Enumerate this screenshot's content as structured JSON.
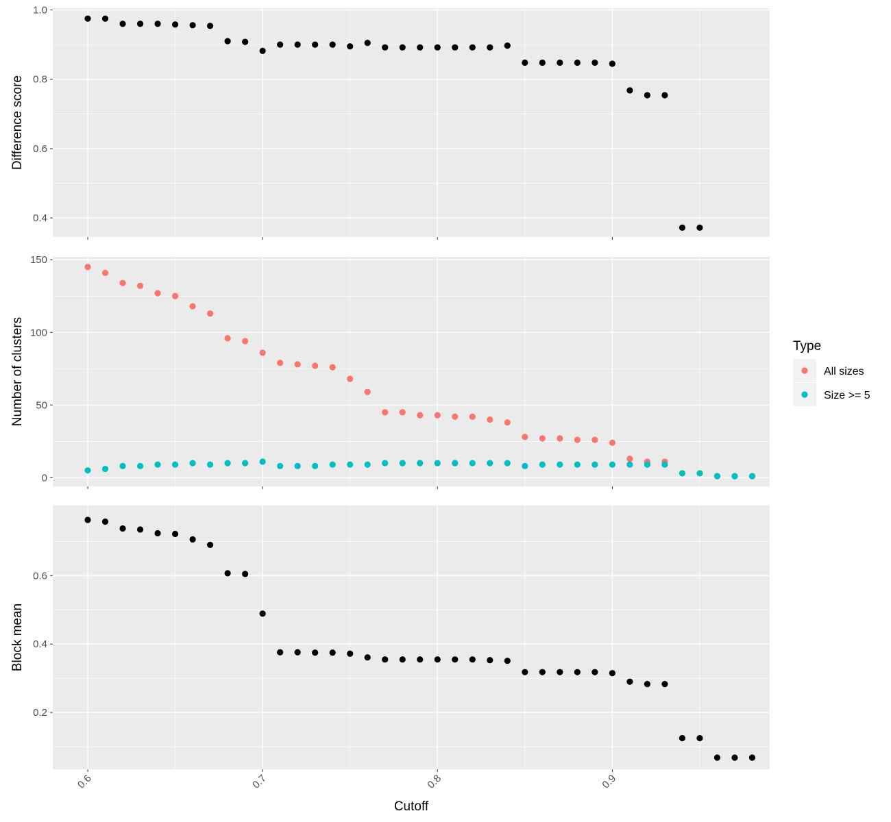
{
  "chart_data": {
    "type": "scatter",
    "xlabel": "Cutoff",
    "xlim": [
      0.58,
      0.99
    ],
    "x_ticks": [
      "0.6",
      "0.7",
      "0.8",
      "0.9"
    ],
    "x": [
      0.6,
      0.61,
      0.62,
      0.63,
      0.64,
      0.65,
      0.66,
      0.67,
      0.68,
      0.69,
      0.7,
      0.71,
      0.72,
      0.73,
      0.74,
      0.75,
      0.76,
      0.77,
      0.78,
      0.79,
      0.8,
      0.81,
      0.82,
      0.83,
      0.84,
      0.85,
      0.86,
      0.87,
      0.88,
      0.89,
      0.9,
      0.91,
      0.92,
      0.93,
      0.94,
      0.95,
      0.96,
      0.97,
      0.98
    ],
    "legend": {
      "title": "Type",
      "position": "right",
      "entries": [
        {
          "label": "All sizes",
          "color": "#F8766D"
        },
        {
          "label": "Size >= 5",
          "color": "#00BFC4"
        }
      ]
    },
    "panels": [
      {
        "ylabel": "Difference score",
        "ylim": [
          0.345,
          1.005
        ],
        "y_ticks": [
          "0.4",
          "0.6",
          "0.8",
          "1.0"
        ],
        "series": [
          {
            "color": "#000000",
            "values": [
              0.975,
              0.975,
              0.96,
              0.96,
              0.96,
              0.958,
              0.956,
              0.954,
              0.91,
              0.908,
              0.882,
              0.9,
              0.9,
              0.9,
              0.9,
              0.895,
              0.905,
              0.892,
              0.892,
              0.892,
              0.892,
              0.892,
              0.892,
              0.892,
              0.897,
              0.848,
              0.848,
              0.848,
              0.848,
              0.848,
              0.845,
              0.768,
              0.754,
              0.754,
              0.372,
              0.372,
              null,
              null,
              null
            ]
          }
        ]
      },
      {
        "ylabel": "Number of clusters",
        "ylim": [
          -6,
          152
        ],
        "y_ticks": [
          "0",
          "50",
          "100",
          "150"
        ],
        "series": [
          {
            "name": "All sizes",
            "color": "#F8766D",
            "values": [
              145,
              141,
              134,
              132,
              127,
              125,
              118,
              113,
              96,
              94,
              86,
              79,
              78,
              77,
              76,
              68,
              59,
              45,
              45,
              43,
              43,
              42,
              42,
              40,
              38,
              28,
              27,
              27,
              26,
              26,
              24,
              13,
              11,
              11,
              3,
              3,
              1,
              1,
              1
            ]
          },
          {
            "name": "Size >= 5",
            "color": "#00BFC4",
            "values": [
              5,
              6,
              8,
              8,
              9,
              9,
              10,
              9,
              10,
              10,
              11,
              8,
              8,
              8,
              9,
              9,
              9,
              10,
              10,
              10,
              10,
              10,
              10,
              10,
              10,
              8,
              9,
              9,
              9,
              9,
              9,
              9,
              9,
              9,
              3,
              3,
              1,
              1,
              1
            ]
          }
        ]
      },
      {
        "ylabel": "Block mean",
        "ylim": [
          0.034,
          0.805
        ],
        "y_ticks": [
          "0.2",
          "0.4",
          "0.6"
        ],
        "series": [
          {
            "color": "#000000",
            "values": [
              0.763,
              0.758,
              0.738,
              0.735,
              0.724,
              0.722,
              0.706,
              0.69,
              0.607,
              0.605,
              0.489,
              0.376,
              0.376,
              0.375,
              0.375,
              0.372,
              0.361,
              0.355,
              0.355,
              0.355,
              0.355,
              0.355,
              0.355,
              0.353,
              0.351,
              0.318,
              0.318,
              0.318,
              0.318,
              0.318,
              0.315,
              0.29,
              0.283,
              0.283,
              0.125,
              0.125,
              0.068,
              0.068,
              0.068
            ]
          }
        ]
      }
    ]
  }
}
